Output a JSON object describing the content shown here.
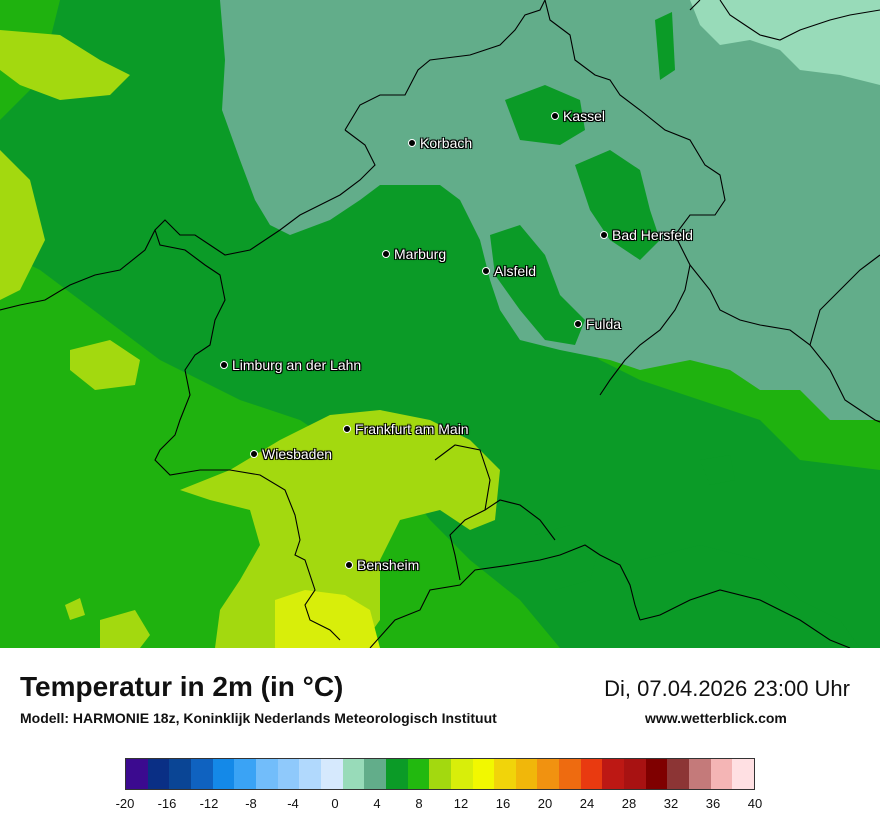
{
  "map": {
    "cities": [
      {
        "name": "Kassel"
      },
      {
        "name": "Korbach"
      },
      {
        "name": "Bad Hersfeld"
      },
      {
        "name": "Marburg"
      },
      {
        "name": "Alsfeld"
      },
      {
        "name": "Fulda"
      },
      {
        "name": "Limburg an der Lahn"
      },
      {
        "name": "Frankfurt am Main"
      },
      {
        "name": "Wiesbaden"
      },
      {
        "name": "Bensheim"
      }
    ]
  },
  "header": {
    "title": "Temperatur in 2m (in °C)",
    "subtitle": "Modell: HARMONIE 18z, Koninklijk Nederlands Meteorologisch Instituut",
    "datetime": "Di, 07.04.2026 23:00 Uhr",
    "website": "www.wetterblick.com"
  },
  "legend": {
    "min": -20,
    "max": 40,
    "step": 2,
    "tick_labels": [
      "-20",
      "-16",
      "-12",
      "-8",
      "-4",
      "0",
      "4",
      "8",
      "12",
      "16",
      "20",
      "24",
      "28",
      "32",
      "36",
      "40"
    ],
    "colors": [
      "#3b0a8f",
      "#0a2f85",
      "#0a4595",
      "#0f62c0",
      "#1489e8",
      "#3aa3f5",
      "#72bdfa",
      "#8fc9fb",
      "#b1d9fd",
      "#d6e9fd",
      "#98dbb9",
      "#62ad8a",
      "#0b9b27",
      "#22b90f",
      "#a3d90f",
      "#d8ee0a",
      "#f2f800",
      "#f1d40a",
      "#f1b70a",
      "#f19210",
      "#ee6b10",
      "#e93a10",
      "#bd1814",
      "#a81212",
      "#7f0000",
      "#8c3535",
      "#c47a7a",
      "#f4b5b5",
      "#ffe0e3"
    ]
  }
}
